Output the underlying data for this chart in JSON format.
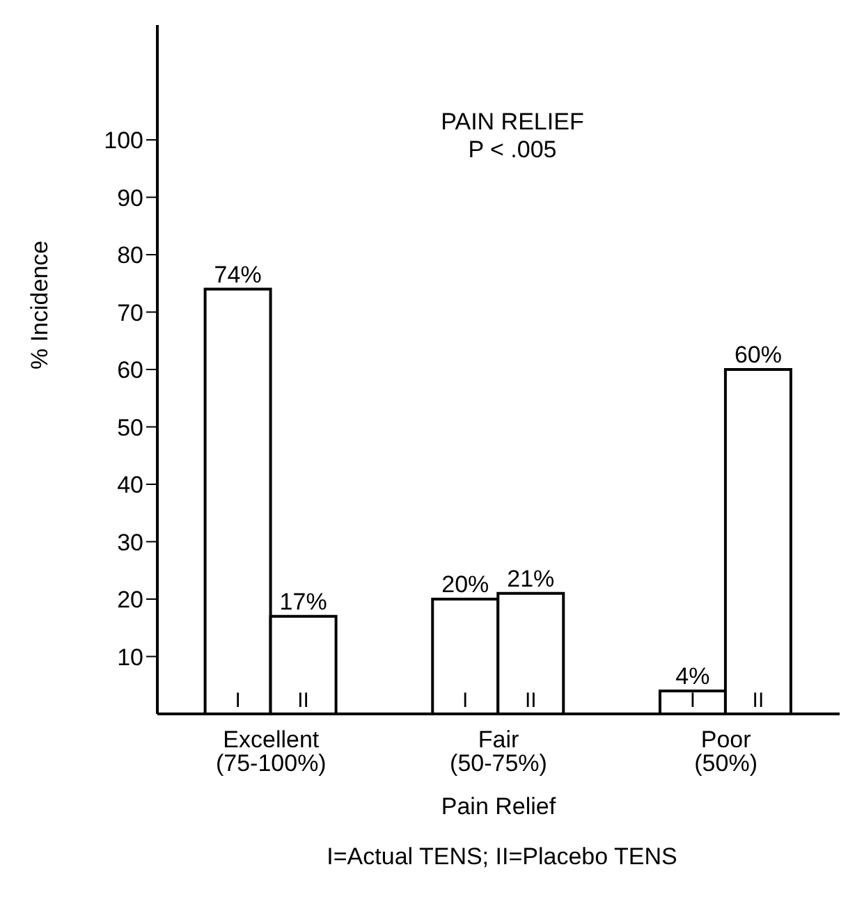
{
  "chart_data": {
    "type": "bar",
    "title": "PAIN RELIEF",
    "subtitle": "P < .005",
    "xlabel": "Pain Relief",
    "ylabel": "% Incidence",
    "categories": [
      "Excellent (75-100%)",
      "Fair (50-75%)",
      "Poor (50%)"
    ],
    "series": [
      {
        "name": "I",
        "color": "#ffffff",
        "values": [
          74,
          20,
          4
        ],
        "value_labels": [
          "74%",
          "20%",
          "4%"
        ]
      },
      {
        "name": "II",
        "color": "#ffffff",
        "values": [
          17,
          21,
          60
        ],
        "value_labels": [
          "17%",
          "21%",
          "60%"
        ]
      }
    ],
    "ylim": [
      0,
      120
    ],
    "yticks": [
      10,
      20,
      30,
      40,
      50,
      60,
      70,
      80,
      90,
      100
    ],
    "grid": false,
    "legend": false,
    "annotations": [
      "I=Actual TENS; II=Placebo TENS"
    ]
  }
}
